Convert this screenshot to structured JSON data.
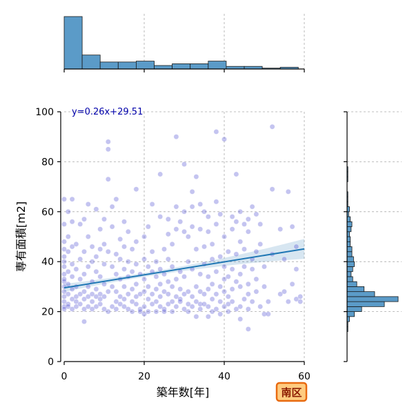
{
  "chart_data": {
    "type": "scatter",
    "xlabel": "築年数[年]",
    "ylabel": "専有面積[m2]",
    "xlim": [
      0,
      60
    ],
    "ylim": [
      0,
      100
    ],
    "xticks": [
      0,
      20,
      40,
      60
    ],
    "yticks": [
      0,
      20,
      40,
      60,
      80,
      100
    ],
    "grid": true,
    "annotation": "y=0.26x+29.51",
    "regression": {
      "slope": 0.26,
      "intercept": 29.51
    },
    "badge": "南区",
    "colors": {
      "points": "#3a3acc",
      "line": "#1f77b4",
      "hist": "#5b9bc8",
      "badge_fill": "#ffcc80",
      "badge_border": "#e86a10"
    },
    "points": [
      [
        0,
        22
      ],
      [
        0,
        24
      ],
      [
        0,
        26
      ],
      [
        0,
        28
      ],
      [
        0,
        30
      ],
      [
        0,
        32
      ],
      [
        0,
        35
      ],
      [
        0,
        38
      ],
      [
        0,
        40
      ],
      [
        0,
        42
      ],
      [
        0,
        45
      ],
      [
        0,
        48
      ],
      [
        0,
        55
      ],
      [
        0,
        65
      ],
      [
        0,
        33
      ],
      [
        0,
        21
      ],
      [
        1,
        23
      ],
      [
        1,
        27
      ],
      [
        1,
        31
      ],
      [
        1,
        36
      ],
      [
        1,
        44
      ],
      [
        1,
        50
      ],
      [
        1,
        22
      ],
      [
        1,
        60
      ],
      [
        2,
        21
      ],
      [
        2,
        25
      ],
      [
        2,
        29
      ],
      [
        2,
        34
      ],
      [
        2,
        39
      ],
      [
        2,
        46
      ],
      [
        2,
        56
      ],
      [
        2,
        65
      ],
      [
        3,
        22
      ],
      [
        3,
        26
      ],
      [
        3,
        30
      ],
      [
        3,
        37
      ],
      [
        3,
        47
      ],
      [
        3,
        24
      ],
      [
        4,
        23
      ],
      [
        4,
        27
      ],
      [
        4,
        33
      ],
      [
        4,
        41
      ],
      [
        4,
        55
      ],
      [
        5,
        21
      ],
      [
        5,
        25
      ],
      [
        5,
        28
      ],
      [
        5,
        35
      ],
      [
        5,
        44
      ],
      [
        5,
        57
      ],
      [
        5,
        16
      ],
      [
        6,
        22
      ],
      [
        6,
        26
      ],
      [
        6,
        30
      ],
      [
        6,
        38
      ],
      [
        6,
        50
      ],
      [
        6,
        63
      ],
      [
        7,
        24
      ],
      [
        7,
        27
      ],
      [
        7,
        32
      ],
      [
        7,
        40
      ],
      [
        7,
        46
      ],
      [
        7,
        21
      ],
      [
        8,
        22
      ],
      [
        8,
        26
      ],
      [
        8,
        29
      ],
      [
        8,
        36
      ],
      [
        8,
        42
      ],
      [
        8,
        61
      ],
      [
        9,
        23
      ],
      [
        9,
        25
      ],
      [
        9,
        27
      ],
      [
        9,
        34
      ],
      [
        9,
        45
      ],
      [
        9,
        53
      ],
      [
        10,
        21
      ],
      [
        10,
        26
      ],
      [
        10,
        31
      ],
      [
        10,
        39
      ],
      [
        10,
        47
      ],
      [
        10,
        57
      ],
      [
        11,
        28
      ],
      [
        11,
        88
      ],
      [
        11,
        85
      ],
      [
        11,
        73
      ],
      [
        11,
        44
      ],
      [
        11,
        20
      ],
      [
        12,
        22
      ],
      [
        12,
        30
      ],
      [
        12,
        38
      ],
      [
        12,
        54
      ],
      [
        12,
        62
      ],
      [
        13,
        24
      ],
      [
        13,
        28
      ],
      [
        13,
        35
      ],
      [
        13,
        43
      ],
      [
        13,
        65
      ],
      [
        13,
        21
      ],
      [
        14,
        23
      ],
      [
        14,
        26
      ],
      [
        14,
        33
      ],
      [
        14,
        41
      ],
      [
        14,
        49
      ],
      [
        15,
        22
      ],
      [
        15,
        25
      ],
      [
        15,
        30
      ],
      [
        15,
        37
      ],
      [
        15,
        46
      ],
      [
        15,
        56
      ],
      [
        16,
        21
      ],
      [
        16,
        27
      ],
      [
        16,
        34
      ],
      [
        16,
        40
      ],
      [
        16,
        52
      ],
      [
        17,
        24
      ],
      [
        17,
        29
      ],
      [
        17,
        36
      ],
      [
        17,
        45
      ],
      [
        17,
        20
      ],
      [
        18,
        23
      ],
      [
        18,
        26
      ],
      [
        18,
        31
      ],
      [
        18,
        39
      ],
      [
        18,
        48
      ],
      [
        18,
        69
      ],
      [
        19,
        21
      ],
      [
        19,
        27
      ],
      [
        19,
        35
      ],
      [
        19,
        20
      ],
      [
        20,
        22
      ],
      [
        20,
        28
      ],
      [
        20,
        33
      ],
      [
        20,
        41
      ],
      [
        20,
        50
      ],
      [
        20,
        19
      ],
      [
        21,
        25
      ],
      [
        21,
        30
      ],
      [
        21,
        38
      ],
      [
        21,
        54
      ],
      [
        21,
        20
      ],
      [
        22,
        23
      ],
      [
        22,
        27
      ],
      [
        22,
        36
      ],
      [
        22,
        44
      ],
      [
        22,
        63
      ],
      [
        23,
        24
      ],
      [
        23,
        29
      ],
      [
        23,
        34
      ],
      [
        23,
        40
      ],
      [
        23,
        20
      ],
      [
        24,
        22
      ],
      [
        24,
        26
      ],
      [
        24,
        31
      ],
      [
        24,
        37
      ],
      [
        24,
        58
      ],
      [
        24,
        75
      ],
      [
        25,
        21
      ],
      [
        25,
        28
      ],
      [
        25,
        35
      ],
      [
        25,
        45
      ],
      [
        25,
        20
      ],
      [
        26,
        23
      ],
      [
        26,
        27
      ],
      [
        26,
        32
      ],
      [
        26,
        41
      ],
      [
        26,
        51
      ],
      [
        26,
        57
      ],
      [
        27,
        24
      ],
      [
        27,
        30
      ],
      [
        27,
        38
      ],
      [
        27,
        47
      ],
      [
        27,
        20
      ],
      [
        28,
        22
      ],
      [
        28,
        26
      ],
      [
        28,
        33
      ],
      [
        28,
        53
      ],
      [
        28,
        62
      ],
      [
        28,
        90
      ],
      [
        29,
        25
      ],
      [
        29,
        29
      ],
      [
        29,
        36
      ],
      [
        29,
        56
      ],
      [
        29,
        24
      ],
      [
        30,
        21
      ],
      [
        30,
        27
      ],
      [
        30,
        34
      ],
      [
        30,
        60
      ],
      [
        30,
        52
      ],
      [
        30,
        79
      ],
      [
        31,
        23
      ],
      [
        31,
        28
      ],
      [
        31,
        40
      ],
      [
        31,
        50
      ],
      [
        31,
        20
      ],
      [
        32,
        22
      ],
      [
        32,
        26
      ],
      [
        32,
        37
      ],
      [
        32,
        54
      ],
      [
        32,
        62
      ],
      [
        32,
        68
      ],
      [
        33,
        24
      ],
      [
        33,
        30
      ],
      [
        33,
        45
      ],
      [
        33,
        74
      ],
      [
        33,
        18
      ],
      [
        34,
        21
      ],
      [
        34,
        28
      ],
      [
        34,
        35
      ],
      [
        34,
        63
      ],
      [
        34,
        53
      ],
      [
        34,
        23
      ],
      [
        35,
        23
      ],
      [
        35,
        27
      ],
      [
        35,
        39
      ],
      [
        35,
        46
      ],
      [
        35,
        60
      ],
      [
        36,
        22
      ],
      [
        36,
        29
      ],
      [
        36,
        34
      ],
      [
        36,
        58
      ],
      [
        36,
        52
      ],
      [
        36,
        18
      ],
      [
        37,
        25
      ],
      [
        37,
        31
      ],
      [
        37,
        41
      ],
      [
        37,
        47
      ],
      [
        37,
        20
      ],
      [
        38,
        21
      ],
      [
        38,
        27
      ],
      [
        38,
        36
      ],
      [
        38,
        55
      ],
      [
        38,
        64
      ],
      [
        38,
        92
      ],
      [
        39,
        24
      ],
      [
        39,
        30
      ],
      [
        39,
        42
      ],
      [
        39,
        59
      ],
      [
        39,
        19
      ],
      [
        40,
        22
      ],
      [
        40,
        28
      ],
      [
        40,
        38
      ],
      [
        40,
        50
      ],
      [
        40,
        33
      ],
      [
        40,
        89
      ],
      [
        41,
        23
      ],
      [
        41,
        26
      ],
      [
        41,
        34
      ],
      [
        41,
        44
      ],
      [
        41,
        20
      ],
      [
        42,
        24
      ],
      [
        42,
        29
      ],
      [
        42,
        37
      ],
      [
        42,
        53
      ],
      [
        42,
        58
      ],
      [
        43,
        21
      ],
      [
        43,
        32
      ],
      [
        43,
        43
      ],
      [
        43,
        75
      ],
      [
        43,
        56
      ],
      [
        44,
        22
      ],
      [
        44,
        30
      ],
      [
        44,
        35
      ],
      [
        44,
        48
      ],
      [
        44,
        60
      ],
      [
        44,
        17
      ],
      [
        45,
        25
      ],
      [
        45,
        38
      ],
      [
        45,
        55
      ],
      [
        45,
        45
      ],
      [
        46,
        21
      ],
      [
        46,
        27
      ],
      [
        46,
        31
      ],
      [
        46,
        57
      ],
      [
        46,
        52
      ],
      [
        46,
        13
      ],
      [
        47,
        24
      ],
      [
        47,
        37
      ],
      [
        47,
        41
      ],
      [
        47,
        62
      ],
      [
        48,
        28
      ],
      [
        48,
        44
      ],
      [
        48,
        33
      ],
      [
        48,
        59
      ],
      [
        49,
        22
      ],
      [
        49,
        47
      ],
      [
        49,
        55
      ],
      [
        50,
        19
      ],
      [
        50,
        30
      ],
      [
        50,
        38
      ],
      [
        51,
        19
      ],
      [
        51,
        24
      ],
      [
        52,
        94
      ],
      [
        52,
        69
      ],
      [
        52,
        43
      ],
      [
        54,
        27
      ],
      [
        54,
        53
      ],
      [
        55,
        28
      ],
      [
        55,
        41
      ],
      [
        56,
        68
      ],
      [
        56,
        24
      ],
      [
        57,
        54
      ],
      [
        57,
        31
      ],
      [
        58,
        37
      ],
      [
        58,
        25
      ],
      [
        58,
        46
      ],
      [
        59,
        26
      ],
      [
        59,
        24
      ]
    ],
    "top_hist": {
      "bins": [
        0,
        4.5,
        9,
        13.5,
        18,
        22.5,
        27,
        31.5,
        36,
        40.5,
        45,
        49.5,
        54,
        58.5
      ],
      "counts": [
        60,
        16,
        8,
        8,
        9,
        4,
        6,
        6,
        9,
        3,
        3,
        1,
        2
      ]
    },
    "right_hist": {
      "bin_edges": [
        12,
        14,
        16,
        18,
        20,
        22,
        24,
        26,
        28,
        30,
        32,
        34,
        36,
        38,
        40,
        42,
        44,
        46,
        48,
        50,
        52,
        54,
        56,
        58,
        60,
        62,
        64,
        66,
        68,
        70,
        72,
        74,
        76,
        78,
        80,
        82
      ],
      "counts": [
        1,
        1,
        3,
        9,
        18,
        46,
        63,
        34,
        21,
        12,
        7,
        5,
        7,
        9,
        8,
        6,
        6,
        4,
        4,
        3,
        5,
        6,
        4,
        2,
        3,
        1,
        1,
        1,
        0,
        0,
        1,
        1,
        1,
        0,
        0
      ]
    }
  }
}
